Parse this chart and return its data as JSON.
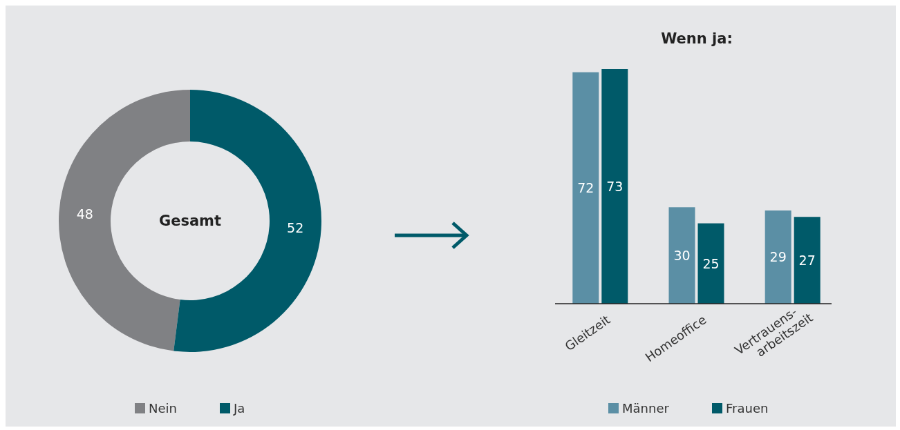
{
  "chart_data": [
    {
      "type": "donut",
      "title": "Gesamt",
      "categories": [
        "Nein",
        "Ja"
      ],
      "values": [
        48,
        52
      ],
      "colors": [
        "#808184",
        "#005a69"
      ],
      "data_labels": true,
      "legend": "bottom"
    },
    {
      "type": "bar",
      "title": "Wenn ja:",
      "categories": [
        "Gleitzeit",
        "Homeoffice",
        "Vertrauens-\narbeitszeit"
      ],
      "series": [
        {
          "name": "Männer",
          "color": "#5b8fa5",
          "values": [
            72,
            30,
            29
          ]
        },
        {
          "name": "Frauen",
          "color": "#005a69",
          "values": [
            73,
            25,
            27
          ]
        }
      ],
      "data_labels": true,
      "legend": "bottom"
    }
  ]
}
